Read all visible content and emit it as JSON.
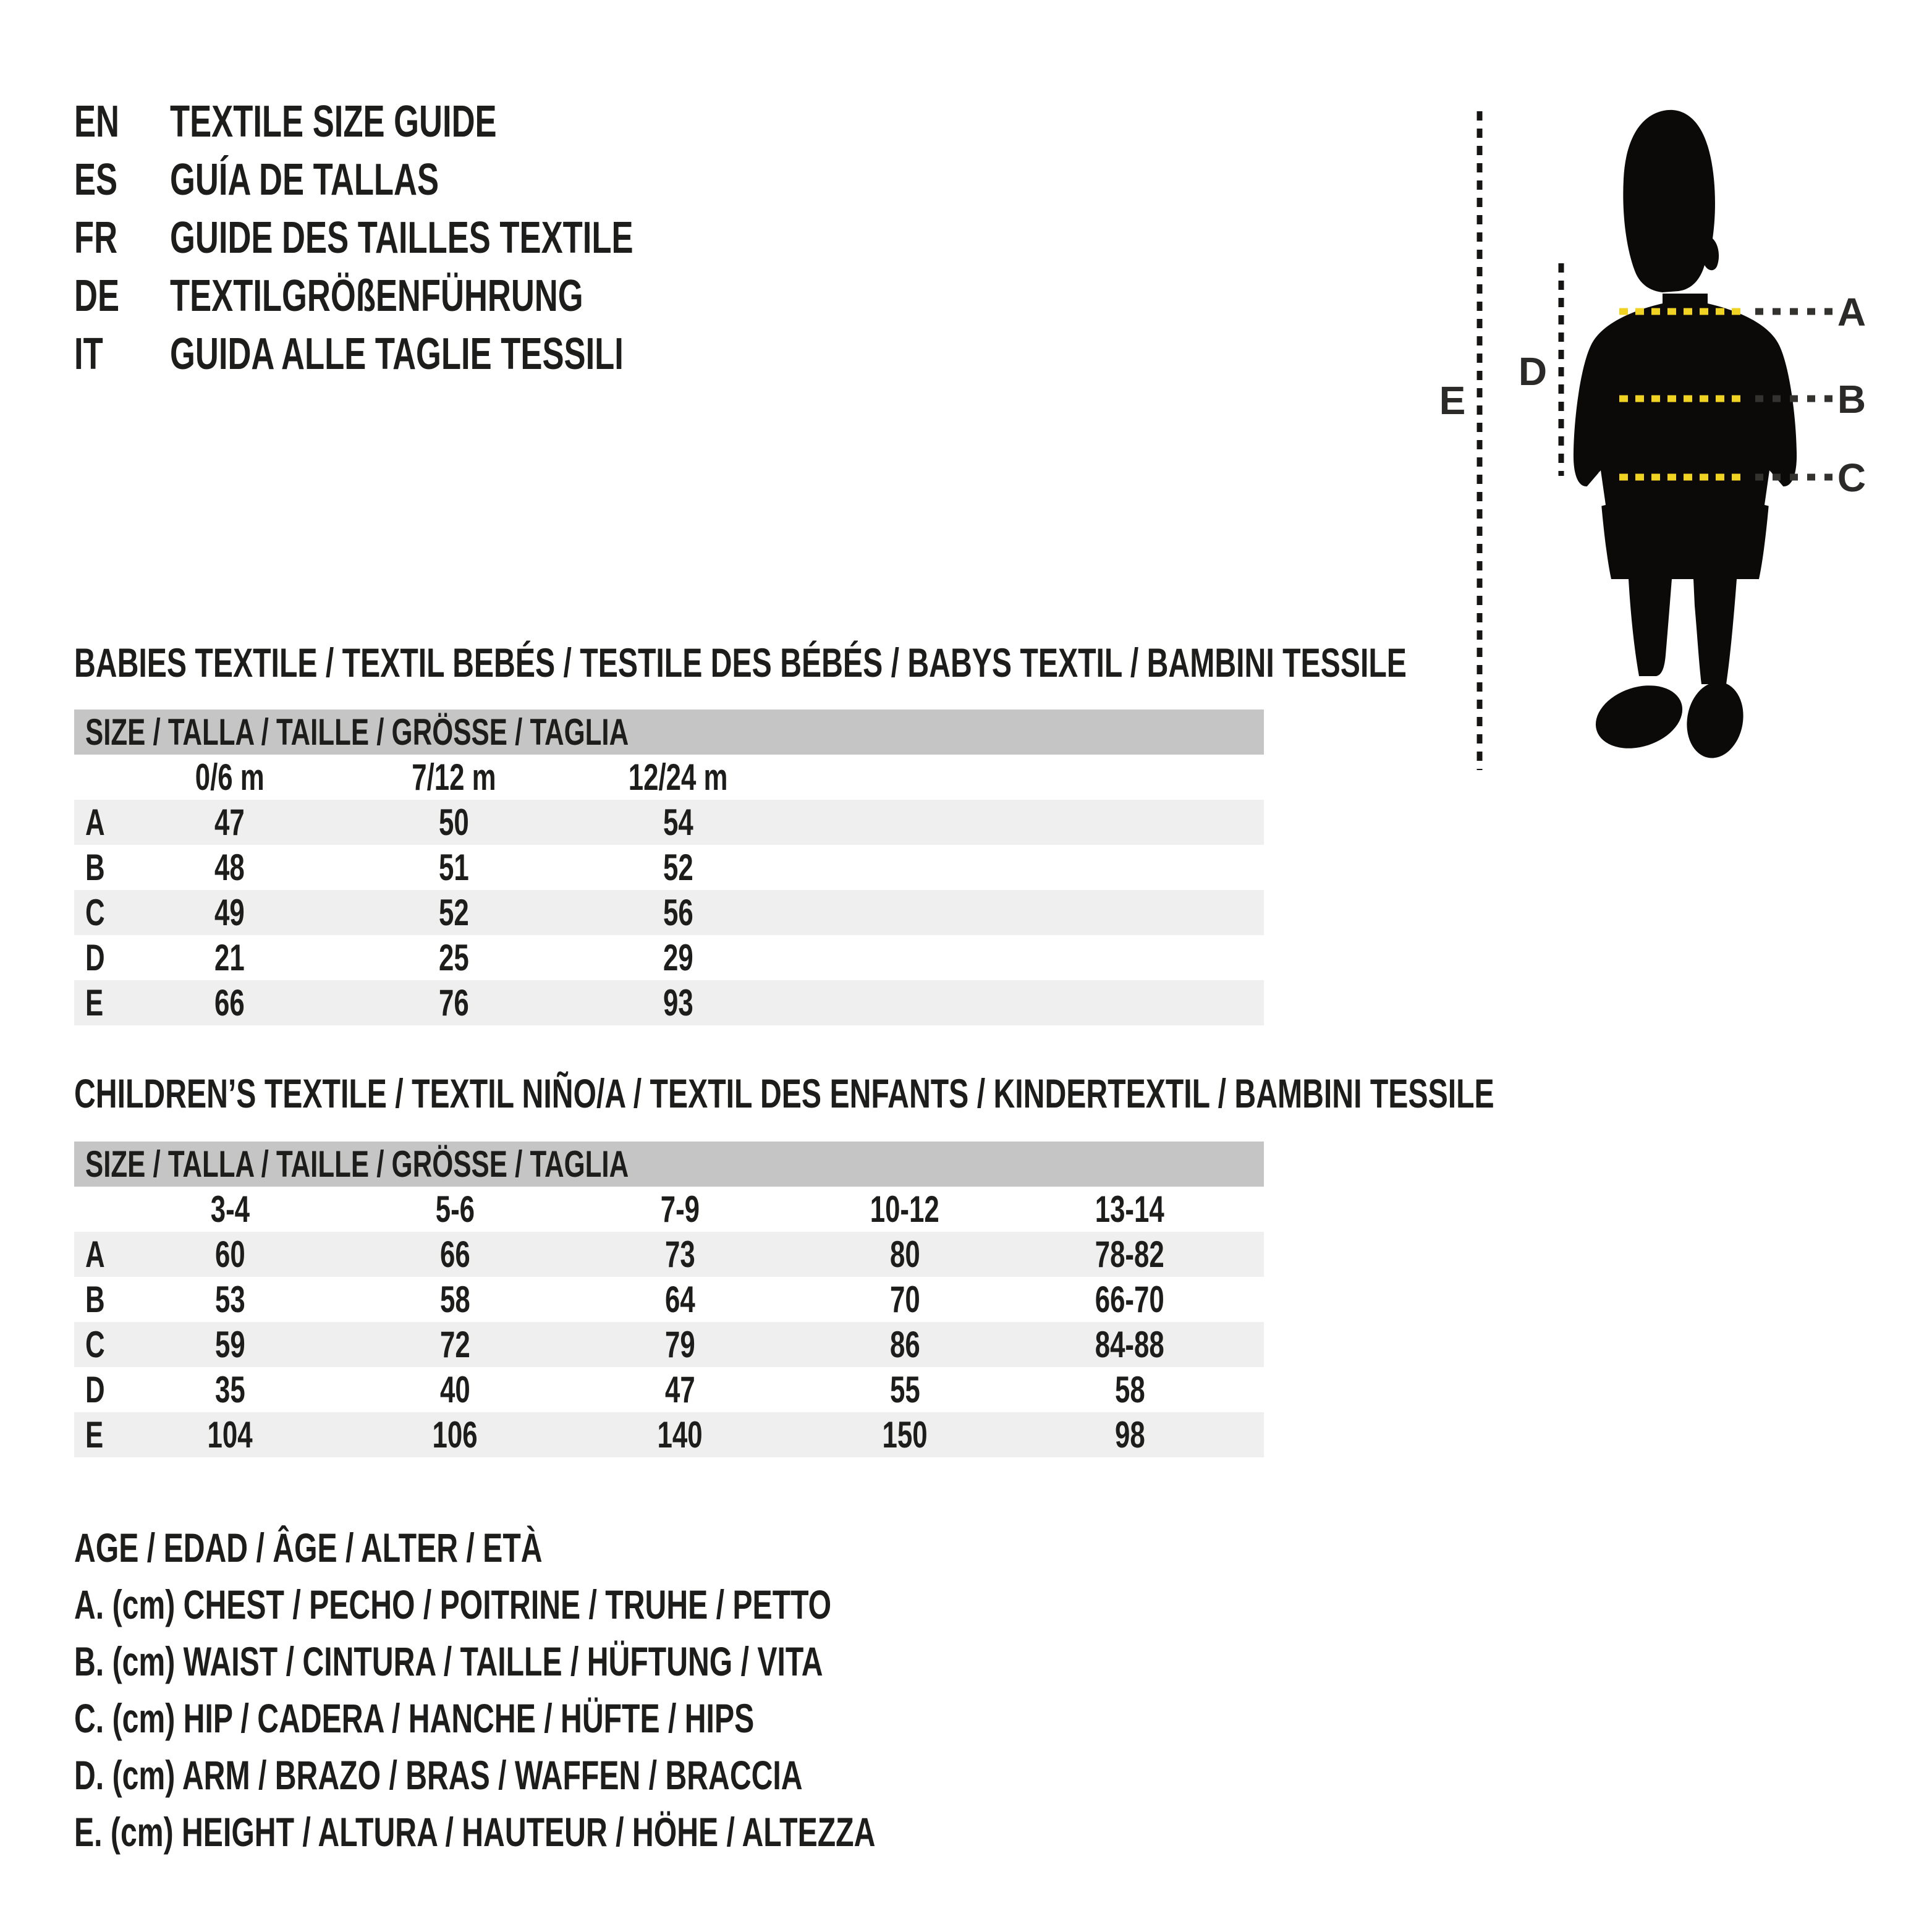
{
  "page": {
    "bg": "#ffffff",
    "text_color": "#1d1d1b",
    "accent_yellow": "#f0d322",
    "bar_gray": "#c5c5c5",
    "zebra_gray": "#efefef"
  },
  "languages": [
    {
      "code": "EN",
      "title": "TEXTILE SIZE GUIDE"
    },
    {
      "code": "ES",
      "title": "GUÍA DE TALLAS"
    },
    {
      "code": "FR",
      "title": "GUIDE DES TAILLES TEXTILE"
    },
    {
      "code": "DE",
      "title": "TEXTILGRÖßENFÜHRUNG"
    },
    {
      "code": "IT",
      "title": "GUIDA ALLE TAGLIE TESSILI"
    }
  ],
  "figure": {
    "labels": {
      "a": "A",
      "b": "B",
      "c": "C",
      "d": "D",
      "e": "E"
    }
  },
  "babies_table": {
    "section_title": "BABIES TEXTILE / TEXTIL BEBÉS / TESTILE DES BÉBÉS / BABYS TEXTIL / BAMBINI TESSILE",
    "size_header": "SIZE / TALLA / TAILLE / GRÖSSE / TAGLIA",
    "columns": [
      "0/6 m",
      "7/12 m",
      "12/24 m"
    ],
    "rows": [
      {
        "label": "A",
        "values": [
          "47",
          "50",
          "54"
        ]
      },
      {
        "label": "B",
        "values": [
          "48",
          "51",
          "52"
        ]
      },
      {
        "label": "C",
        "values": [
          "49",
          "52",
          "56"
        ]
      },
      {
        "label": "D",
        "values": [
          "21",
          "25",
          "29"
        ]
      },
      {
        "label": "E",
        "values": [
          "66",
          "76",
          "93"
        ]
      }
    ]
  },
  "children_table": {
    "section_title": "CHILDREN’S TEXTILE / TEXTIL NIÑO/A / TEXTIL DES ENFANTS / KINDERTEXTIL / BAMBINI TESSILE",
    "size_header": "SIZE / TALLA / TAILLE / GRÖSSE / TAGLIA",
    "columns": [
      "3-4",
      "5-6",
      "7-9",
      "10-12",
      "13-14"
    ],
    "rows": [
      {
        "label": "A",
        "values": [
          "60",
          "66",
          "73",
          "80",
          "78-82"
        ]
      },
      {
        "label": "B",
        "values": [
          "53",
          "58",
          "64",
          "70",
          "66-70"
        ]
      },
      {
        "label": "C",
        "values": [
          "59",
          "72",
          "79",
          "86",
          "84-88"
        ]
      },
      {
        "label": "D",
        "values": [
          "35",
          "40",
          "47",
          "55",
          "58"
        ]
      },
      {
        "label": "E",
        "values": [
          "104",
          "106",
          "140",
          "150",
          "98"
        ]
      }
    ]
  },
  "legend": {
    "lines": [
      "AGE / EDAD / ÂGE / ALTER / ETÀ",
      "A. (cm) CHEST / PECHO / POITRINE / TRUHE / PETTO",
      "B. (cm) WAIST / CINTURA / TAILLE / HÜFTUNG / VITA",
      "C. (cm) HIP / CADERA / HANCHE / HÜFTE / HIPS",
      "D. (cm) ARM / BRAZO / BRAS / WAFFEN / BRACCIA",
      "E. (cm) HEIGHT / ALTURA / HAUTEUR / HÖHE / ALTEZZA"
    ]
  }
}
